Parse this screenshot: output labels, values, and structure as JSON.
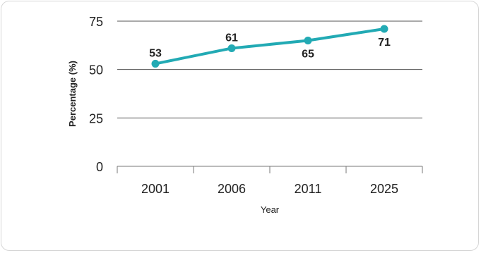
{
  "chart_data": {
    "type": "line",
    "title": "",
    "xlabel": "Year",
    "ylabel": "Percentage (%)",
    "categories": [
      "2001",
      "2006",
      "2011",
      "2025"
    ],
    "series": [
      {
        "name": "",
        "values": [
          53,
          61,
          65,
          71
        ],
        "color": "#22aab4"
      }
    ],
    "data_labels": [
      "53",
      "61",
      "65",
      "71"
    ],
    "yticks": [
      0,
      25,
      50,
      75
    ],
    "ylim": [
      0,
      75
    ],
    "grid": true,
    "legend": "none"
  }
}
